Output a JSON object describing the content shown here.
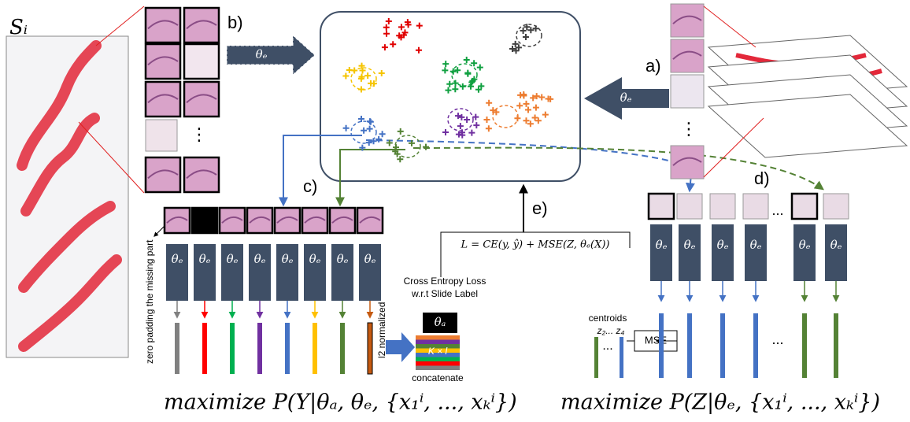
{
  "slide_label": "Sᵢ",
  "step_labels": {
    "a": "a)",
    "b": "b)",
    "c": "c)",
    "d": "d)",
    "e": "e)"
  },
  "encoder": "θₑ",
  "aggregator": "θₐ",
  "vertical_ellipsis": "⋮",
  "ellipsis": "...",
  "zero_padding": "zero padding the missing part",
  "l2_normalized": "l2 normalized",
  "loss_caption": [
    "Cross Entropy Loss",
    "w.r.t Slide Label"
  ],
  "concat_size": "K × l",
  "concatenate": "concatenate",
  "loss_formula": "L = CE(y, ŷ) + MSE(Z, θₑ(X))",
  "centroids": "centroids",
  "centroid_ids": "z₂... z₄",
  "mse": "MSE",
  "objective_left": "maximize   P(Y|θₐ, θₑ, {x₁ⁱ, ..., xₖⁱ})",
  "objective_right": "maximize   P(Z|θₑ, {x₁ⁱ, ..., xₖⁱ})"
}
